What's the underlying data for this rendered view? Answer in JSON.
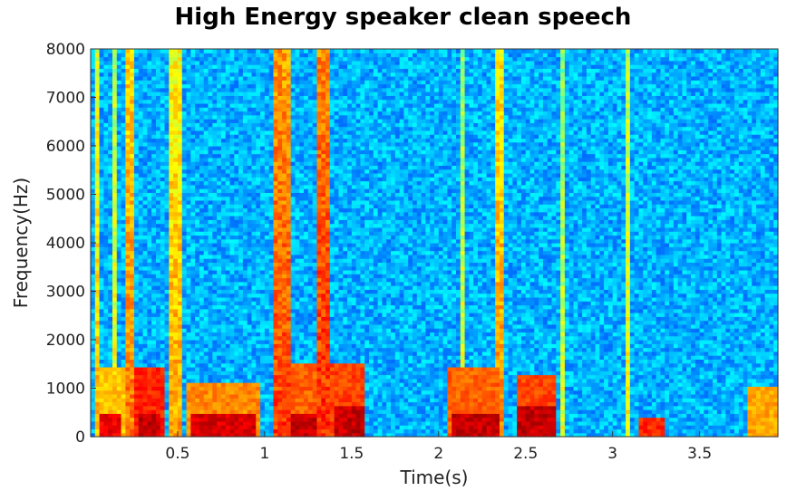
{
  "chart_data": {
    "type": "heatmap",
    "title": "High Energy speaker clean speech",
    "xlabel": "Time(s)",
    "ylabel": "Frequency(Hz)",
    "xlim": [
      0,
      3.95
    ],
    "ylim": [
      0,
      8000
    ],
    "x_ticks": [
      {
        "value": 0.5,
        "label": "0.5"
      },
      {
        "value": 1.0,
        "label": "1"
      },
      {
        "value": 1.5,
        "label": "1.5"
      },
      {
        "value": 2.0,
        "label": "2"
      },
      {
        "value": 2.5,
        "label": "2.5"
      },
      {
        "value": 3.0,
        "label": "3"
      },
      {
        "value": 3.5,
        "label": "3.5"
      }
    ],
    "y_ticks": [
      {
        "value": 0,
        "label": "0"
      },
      {
        "value": 1000,
        "label": "1000"
      },
      {
        "value": 2000,
        "label": "2000"
      },
      {
        "value": 3000,
        "label": "3000"
      },
      {
        "value": 4000,
        "label": "4000"
      },
      {
        "value": 5000,
        "label": "5000"
      },
      {
        "value": 6000,
        "label": "6000"
      },
      {
        "value": 7000,
        "label": "7000"
      },
      {
        "value": 8000,
        "label": "8000"
      }
    ],
    "colormap": "jet",
    "background_level": 0.3,
    "energy_regions": [
      {
        "t0": 0.02,
        "t1": 0.22,
        "f0": 0,
        "f1": 1400,
        "level": 0.72
      },
      {
        "t0": 0.05,
        "t1": 0.18,
        "f0": 0,
        "f1": 500,
        "level": 0.93
      },
      {
        "t0": 0.25,
        "t1": 0.42,
        "f0": 0,
        "f1": 1400,
        "level": 0.88
      },
      {
        "t0": 0.27,
        "t1": 0.4,
        "f0": 0,
        "f1": 500,
        "level": 0.97
      },
      {
        "t0": 0.55,
        "t1": 0.98,
        "f0": 0,
        "f1": 1100,
        "level": 0.78
      },
      {
        "t0": 0.58,
        "t1": 0.96,
        "f0": 0,
        "f1": 450,
        "level": 0.95
      },
      {
        "t0": 1.12,
        "t1": 1.33,
        "f0": 0,
        "f1": 1500,
        "level": 0.82
      },
      {
        "t0": 1.14,
        "t1": 1.3,
        "f0": 0,
        "f1": 500,
        "level": 0.97
      },
      {
        "t0": 1.38,
        "t1": 1.58,
        "f0": 0,
        "f1": 1500,
        "level": 0.85
      },
      {
        "t0": 1.4,
        "t1": 1.57,
        "f0": 0,
        "f1": 600,
        "level": 0.97
      },
      {
        "t0": 2.05,
        "t1": 2.36,
        "f0": 0,
        "f1": 1400,
        "level": 0.82
      },
      {
        "t0": 2.07,
        "t1": 2.35,
        "f0": 0,
        "f1": 500,
        "level": 0.97
      },
      {
        "t0": 2.44,
        "t1": 2.68,
        "f0": 0,
        "f1": 1300,
        "level": 0.85
      },
      {
        "t0": 2.45,
        "t1": 2.67,
        "f0": 0,
        "f1": 600,
        "level": 0.97
      },
      {
        "t0": 3.16,
        "t1": 3.3,
        "f0": 0,
        "f1": 400,
        "level": 0.88
      },
      {
        "t0": 3.78,
        "t1": 3.95,
        "f0": 0,
        "f1": 1000,
        "level": 0.75
      }
    ],
    "energy_bands": [
      {
        "t0": 0.02,
        "t1": 0.06,
        "level": 0.75
      },
      {
        "t0": 0.12,
        "t1": 0.14,
        "level": 0.7
      },
      {
        "t0": 0.2,
        "t1": 0.25,
        "level": 0.82
      },
      {
        "t0": 0.45,
        "t1": 0.52,
        "level": 0.78
      },
      {
        "t0": 1.05,
        "t1": 1.15,
        "level": 0.88
      },
      {
        "t0": 1.3,
        "t1": 1.37,
        "level": 0.9
      },
      {
        "t0": 2.12,
        "t1": 2.14,
        "level": 0.68
      },
      {
        "t0": 2.33,
        "t1": 2.37,
        "level": 0.8
      },
      {
        "t0": 2.7,
        "t1": 2.72,
        "level": 0.66
      },
      {
        "t0": 3.08,
        "t1": 3.1,
        "level": 0.7
      }
    ]
  }
}
